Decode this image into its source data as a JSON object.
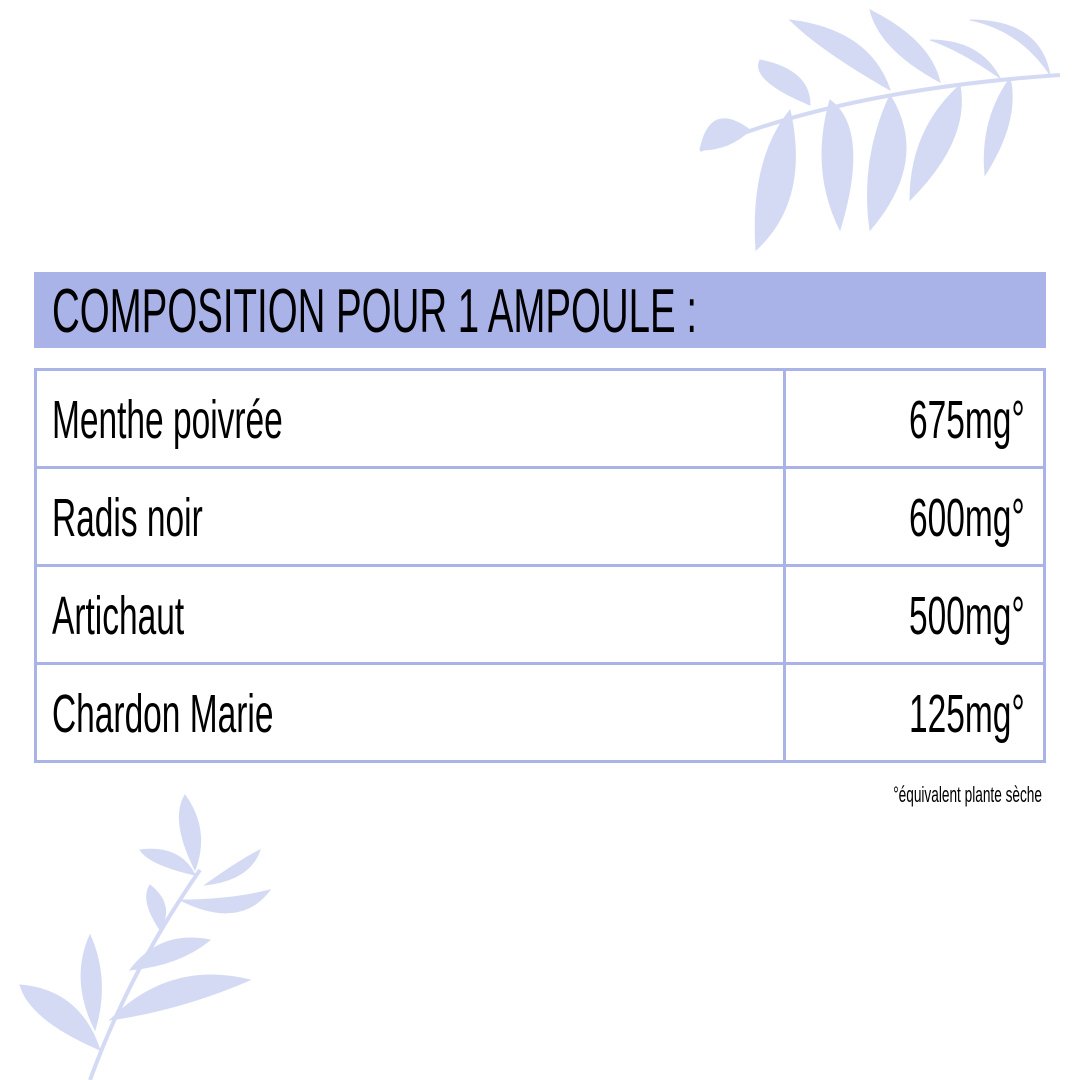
{
  "colors": {
    "accent": "#aab3e8",
    "leaf": "#d4daf3",
    "border": "#aab3e8"
  },
  "icons": {
    "top_right": "leaf-branch-icon",
    "bottom_left": "leaf-sprig-icon"
  },
  "title": "COMPOSITION POUR 1 AMPOULE :",
  "rows": [
    {
      "name": "Menthe poivrée",
      "value": "675mg°"
    },
    {
      "name": "Radis noir",
      "value": "600mg°"
    },
    {
      "name": "Artichaut",
      "value": "500mg°"
    },
    {
      "name": "Chardon Marie",
      "value": "125mg°"
    }
  ],
  "footnote": "°équivalent plante sèche"
}
